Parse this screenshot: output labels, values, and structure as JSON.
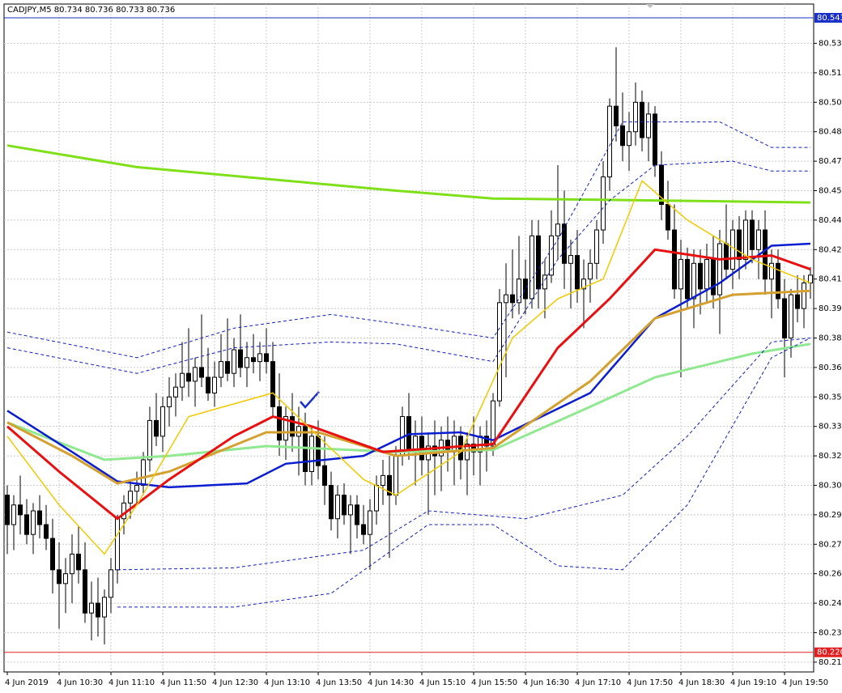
{
  "chart_data": {
    "type": "candlestick",
    "title": "CADJPY,M5  80.734 80.736 80.733 80.736",
    "ylim": [
      80.21,
      80.55
    ],
    "yticks": [
      {
        "value": 80.53,
        "label": "80.530"
      },
      80.515,
      {
        "value": 80.5,
        "label": "80.500"
      },
      80.485,
      {
        "value": 80.47,
        "label": "80.470"
      },
      80.455,
      {
        "value": 80.44,
        "label": "80.440"
      },
      80.425,
      {
        "value": 80.41,
        "label": "80.410"
      },
      80.395,
      {
        "value": 80.38,
        "label": "80.380"
      },
      80.365,
      {
        "value": 80.35,
        "label": "80.350"
      },
      80.335,
      {
        "value": 80.32,
        "label": "80.320"
      },
      80.305,
      {
        "value": 80.29,
        "label": "80.290"
      },
      80.275,
      {
        "value": 80.26,
        "label": "80.260"
      },
      80.245,
      {
        "value": 80.23,
        "label": "80.230"
      },
      80.215
    ],
    "xticks": [
      {
        "value": 0,
        "label": "4 Jun 2019"
      },
      {
        "value": 8,
        "label": "4 Jun 10:30"
      },
      {
        "value": 16,
        "label": "4 Jun 11:10"
      },
      {
        "value": 24,
        "label": "4 Jun 11:50"
      },
      {
        "value": 32,
        "label": "4 Jun 12:30"
      },
      {
        "value": 40,
        "label": "4 Jun 13:10"
      },
      {
        "value": 48,
        "label": "4 Jun 13:50"
      },
      {
        "value": 56,
        "label": "4 Jun 14:30"
      },
      {
        "value": 64,
        "label": "4 Jun 15:10"
      },
      {
        "value": 72,
        "label": "4 Jun 15:50"
      },
      {
        "value": 80,
        "label": "4 Jun 16:30"
      },
      {
        "value": 88,
        "label": "4 Jun 17:10"
      },
      {
        "value": 96,
        "label": "4 Jun 17:50"
      },
      {
        "value": 104,
        "label": "4 Jun 18:30"
      },
      {
        "value": 112,
        "label": "4 Jun 19:10"
      },
      {
        "value": 120,
        "label": "4 Jun 19:50"
      }
    ],
    "grid": true,
    "up_color": "#ffffff",
    "down_color": "#000000",
    "open": [
      80.3,
      80.285,
      80.295,
      80.29,
      80.28,
      80.292,
      80.285,
      80.278,
      80.262,
      80.255,
      80.26,
      80.27,
      80.262,
      80.24,
      80.245,
      80.238,
      80.248,
      80.262,
      80.288,
      80.296,
      80.302,
      80.305,
      80.318,
      80.338,
      80.33,
      80.345,
      80.35,
      80.355,
      80.362,
      80.358,
      80.365,
      80.36,
      80.352,
      80.36,
      80.368,
      80.362,
      80.374,
      80.365,
      80.37,
      80.368,
      80.372,
      80.368,
      80.345,
      80.328,
      80.34,
      80.33,
      80.335,
      80.312,
      80.33,
      80.315,
      80.305,
      80.288,
      80.3,
      80.29,
      80.295,
      80.285,
      80.28,
      80.292,
      80.305,
      80.31,
      80.3,
      80.32,
      80.34,
      80.322,
      80.33,
      80.318,
      80.325,
      80.32,
      80.328,
      80.322,
      80.33,
      80.318,
      80.326,
      80.322,
      80.33,
      80.325,
      80.348,
      80.398,
      80.402,
      80.398,
      80.41,
      80.4,
      80.432,
      80.405,
      80.412,
      80.432,
      80.438,
      80.418,
      80.422,
      80.405,
      80.41,
      80.418,
      80.435,
      80.462,
      80.498,
      80.488,
      80.478,
      80.485,
      80.5,
      80.482,
      80.494,
      80.468,
      80.448,
      80.435,
      80.405,
      80.42,
      80.4,
      80.418,
      80.405,
      80.42,
      80.402,
      80.428,
      80.415,
      80.435,
      80.42,
      80.44,
      80.425,
      80.435,
      80.41,
      80.418,
      80.4,
      80.38,
      80.402,
      80.395,
      80.408
    ],
    "high": [
      80.305,
      80.3,
      80.31,
      80.298,
      80.296,
      80.3,
      80.295,
      80.288,
      80.276,
      80.268,
      80.28,
      80.284,
      80.276,
      80.256,
      80.258,
      80.252,
      80.268,
      80.29,
      80.3,
      80.308,
      80.312,
      80.322,
      80.345,
      80.352,
      80.35,
      80.36,
      80.362,
      80.378,
      80.385,
      80.37,
      80.392,
      80.375,
      80.368,
      80.382,
      80.39,
      80.38,
      80.392,
      80.378,
      80.382,
      80.378,
      80.385,
      80.378,
      80.362,
      80.345,
      80.352,
      80.345,
      80.342,
      80.335,
      80.338,
      80.33,
      80.312,
      80.305,
      80.306,
      80.3,
      80.3,
      80.295,
      80.298,
      80.31,
      80.318,
      80.32,
      80.325,
      80.345,
      80.352,
      80.338,
      80.34,
      80.332,
      80.338,
      80.335,
      80.34,
      80.338,
      80.335,
      80.332,
      80.34,
      80.335,
      80.338,
      80.352,
      80.405,
      80.418,
      80.425,
      80.432,
      80.42,
      80.44,
      80.44,
      80.42,
      80.445,
      80.468,
      80.455,
      80.43,
      80.435,
      80.42,
      80.425,
      80.44,
      80.47,
      80.502,
      80.528,
      80.505,
      80.495,
      80.51,
      80.506,
      80.5,
      80.498,
      80.475,
      80.46,
      80.448,
      80.43,
      80.426,
      80.425,
      80.425,
      80.428,
      80.432,
      80.435,
      80.448,
      80.44,
      80.442,
      80.445,
      80.445,
      80.44,
      80.445,
      80.425,
      80.425,
      80.41,
      80.405,
      80.412,
      80.412,
      80.416
    ],
    "low": [
      80.27,
      80.272,
      80.28,
      80.275,
      80.27,
      80.278,
      80.272,
      80.25,
      80.232,
      80.24,
      80.245,
      80.255,
      80.235,
      80.226,
      80.228,
      80.224,
      80.24,
      80.255,
      80.28,
      80.288,
      80.295,
      80.3,
      80.312,
      80.325,
      80.322,
      80.335,
      80.34,
      80.348,
      80.35,
      80.345,
      80.355,
      80.348,
      80.345,
      80.355,
      80.358,
      80.355,
      80.36,
      80.355,
      80.362,
      80.358,
      80.362,
      80.34,
      80.32,
      80.318,
      80.322,
      80.31,
      80.305,
      80.305,
      80.308,
      80.295,
      80.282,
      80.278,
      80.285,
      80.27,
      80.278,
      80.275,
      80.262,
      80.285,
      80.295,
      80.268,
      80.295,
      80.315,
      80.318,
      80.305,
      80.31,
      80.29,
      80.3,
      80.302,
      80.312,
      80.305,
      80.308,
      80.3,
      80.31,
      80.305,
      80.312,
      80.32,
      80.345,
      80.36,
      80.39,
      80.392,
      80.392,
      80.395,
      80.395,
      80.39,
      80.408,
      80.42,
      80.405,
      80.395,
      80.398,
      80.385,
      80.398,
      80.41,
      80.428,
      80.455,
      80.48,
      80.47,
      80.465,
      80.478,
      80.475,
      80.47,
      80.462,
      80.44,
      80.43,
      80.4,
      80.36,
      80.395,
      80.385,
      80.392,
      80.398,
      80.395,
      80.382,
      80.41,
      80.405,
      80.41,
      80.415,
      80.418,
      80.41,
      80.402,
      80.39,
      80.395,
      80.36,
      80.37,
      80.388,
      80.385,
      80.4
    ],
    "close": [
      80.285,
      80.295,
      80.29,
      80.28,
      80.292,
      80.285,
      80.278,
      80.262,
      80.255,
      80.26,
      80.27,
      80.262,
      80.24,
      80.245,
      80.238,
      80.248,
      80.262,
      80.288,
      80.296,
      80.302,
      80.305,
      80.318,
      80.338,
      80.33,
      80.345,
      80.35,
      80.355,
      80.362,
      80.358,
      80.365,
      80.36,
      80.352,
      80.36,
      80.368,
      80.362,
      80.374,
      80.365,
      80.37,
      80.368,
      80.372,
      80.368,
      80.345,
      80.328,
      80.34,
      80.33,
      80.335,
      80.312,
      80.33,
      80.315,
      80.305,
      80.288,
      80.3,
      80.29,
      80.295,
      80.285,
      80.28,
      80.292,
      80.305,
      80.31,
      80.3,
      80.32,
      80.34,
      80.322,
      80.33,
      80.318,
      80.325,
      80.32,
      80.328,
      80.322,
      80.33,
      80.318,
      80.326,
      80.322,
      80.33,
      80.325,
      80.348,
      80.398,
      80.402,
      80.398,
      80.41,
      80.4,
      80.432,
      80.405,
      80.412,
      80.432,
      80.438,
      80.418,
      80.422,
      80.405,
      80.41,
      80.418,
      80.435,
      80.462,
      80.498,
      80.488,
      80.478,
      80.485,
      80.5,
      80.482,
      80.494,
      80.468,
      80.448,
      80.435,
      80.405,
      80.42,
      80.4,
      80.418,
      80.405,
      80.42,
      80.402,
      80.428,
      80.415,
      80.435,
      80.42,
      80.44,
      80.425,
      80.435,
      80.41,
      80.418,
      80.4,
      80.38,
      80.402,
      80.395,
      80.408,
      80.412
    ],
    "indicators": [
      {
        "color": "#7fe01a",
        "width": 3,
        "x": [
          0,
          20,
          40,
          60,
          75,
          100,
          124
        ],
        "values": [
          80.478,
          80.467,
          80.461,
          80.455,
          80.451,
          80.45,
          80.449
        ]
      },
      {
        "color": "#90e890",
        "width": 3,
        "x": [
          0,
          15,
          25,
          40,
          60,
          75,
          90,
          100,
          115,
          124
        ],
        "values": [
          80.337,
          80.318,
          80.32,
          80.325,
          80.322,
          80.323,
          80.345,
          80.36,
          80.372,
          80.377
        ]
      },
      {
        "color": "#0a1ed0",
        "width": 2.5,
        "x": [
          0,
          10,
          17,
          25,
          37,
          43,
          55,
          62,
          70,
          75,
          90,
          100,
          110,
          118,
          124
        ],
        "values": [
          80.343,
          80.322,
          80.307,
          80.304,
          80.306,
          80.316,
          80.32,
          80.331,
          80.332,
          80.328,
          80.352,
          80.39,
          80.408,
          80.427,
          80.428
        ]
      },
      {
        "color": "#d4a030",
        "width": 3,
        "x": [
          0,
          10,
          17,
          25,
          40,
          48,
          60,
          75,
          90,
          100,
          112,
          124
        ],
        "values": [
          80.337,
          80.32,
          80.306,
          80.312,
          80.332,
          80.332,
          80.32,
          80.324,
          80.358,
          80.39,
          80.402,
          80.404
        ]
      },
      {
        "color": "#e81010",
        "width": 3,
        "x": [
          0,
          8,
          17,
          25,
          35,
          41,
          47,
          58,
          75,
          85,
          93,
          100,
          110,
          118,
          124
        ],
        "values": [
          80.335,
          80.312,
          80.288,
          80.308,
          80.33,
          80.34,
          80.335,
          80.322,
          80.326,
          80.375,
          80.4,
          80.425,
          80.42,
          80.422,
          80.415
        ]
      },
      {
        "color": "#f2c800",
        "width": 1.5,
        "x": [
          0,
          8,
          15,
          20,
          28,
          41,
          55,
          60,
          70,
          78,
          85,
          92,
          98,
          105,
          115,
          124
        ],
        "values": [
          80.33,
          80.295,
          80.27,
          80.295,
          80.34,
          80.352,
          80.308,
          80.3,
          80.322,
          80.38,
          80.4,
          80.41,
          80.46,
          80.44,
          80.42,
          80.408
        ]
      },
      {
        "color": "#1020c0",
        "width": 1,
        "dashed": true,
        "x": [
          0,
          20,
          35,
          50,
          65,
          75,
          85,
          95,
          110,
          118,
          124
        ],
        "values": [
          80.383,
          80.37,
          80.385,
          80.392,
          80.385,
          80.38,
          80.43,
          80.49,
          80.49,
          80.477,
          80.477
        ]
      },
      {
        "color": "#1020c0",
        "width": 1,
        "dashed": true,
        "x": [
          0,
          20,
          35,
          50,
          60,
          75,
          85,
          93,
          100,
          112,
          118,
          124
        ],
        "values": [
          80.375,
          80.362,
          80.375,
          80.378,
          80.377,
          80.368,
          80.42,
          80.45,
          80.468,
          80.47,
          80.465,
          80.465
        ]
      },
      {
        "color": "#1020c0",
        "width": 1,
        "dashed": true,
        "x": [
          17,
          35,
          55,
          65,
          80,
          95,
          105,
          118,
          124
        ],
        "values": [
          80.262,
          80.263,
          80.272,
          80.292,
          80.288,
          80.3,
          80.33,
          80.378,
          80.38
        ]
      },
      {
        "color": "#1020c0",
        "width": 1,
        "dashed": true,
        "x": [
          17,
          35,
          50,
          65,
          75,
          85,
          95,
          105,
          118,
          124
        ],
        "values": [
          80.243,
          80.243,
          80.25,
          80.285,
          80.285,
          80.264,
          80.262,
          80.295,
          80.37,
          80.38
        ]
      }
    ],
    "hlines": [
      {
        "value": 80.543,
        "label": "80.543",
        "color": "#1a2fc8"
      },
      {
        "value": 80.22,
        "label": "80.220",
        "color": "#e02020"
      }
    ]
  }
}
